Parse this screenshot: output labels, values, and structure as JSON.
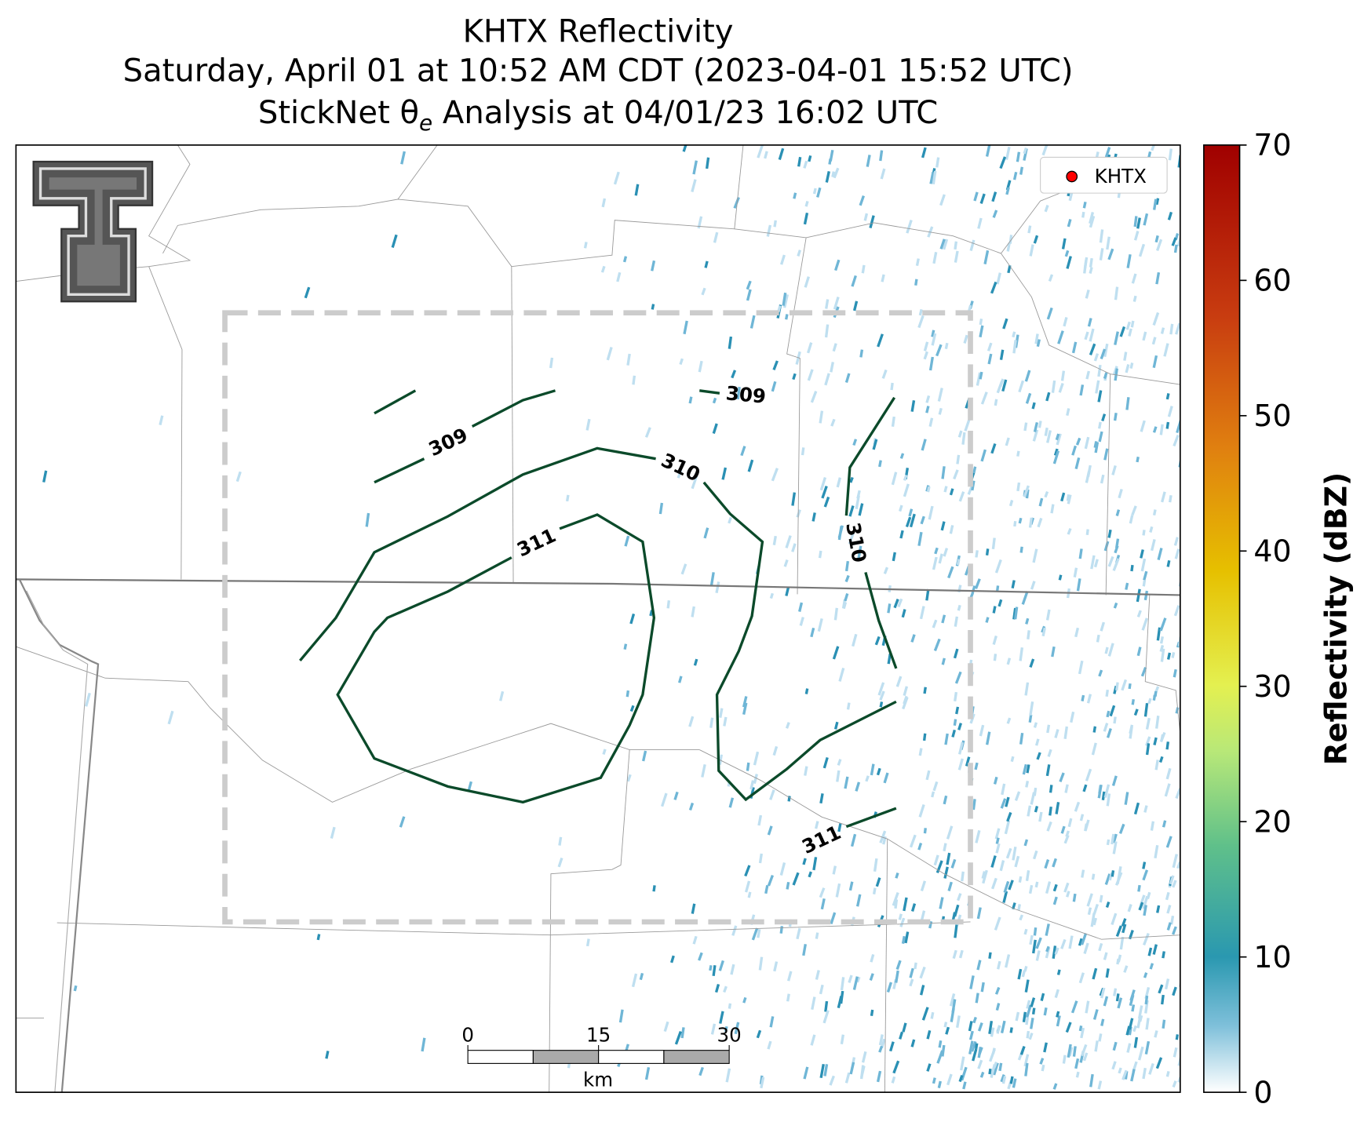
{
  "title": {
    "line1": "KHTX Reflectivity",
    "line2": "Saturday, April 01 at 10:52 AM CDT (2023-04-01 15:52 UTC)",
    "line3": {
      "before": "StickNet θ",
      "sub": "e",
      "after": " Analysis at 04/01/23 16:02 UTC"
    }
  },
  "legend": {
    "label": "KHTX",
    "color": "#ff0000"
  },
  "colorbar": {
    "label": "Reflectivity (dBZ)",
    "lim": [
      0,
      70
    ],
    "ticks": [
      0,
      10,
      20,
      30,
      40,
      50,
      60,
      70
    ]
  },
  "contours": {
    "color": "#0b4a2a",
    "levels": [
      309,
      310,
      311
    ],
    "labels": [
      309,
      309,
      310,
      310,
      311,
      311
    ]
  },
  "scalebar": {
    "lim": [
      0,
      30
    ],
    "ticks": [
      0,
      15,
      30
    ],
    "unit": "km"
  }
}
